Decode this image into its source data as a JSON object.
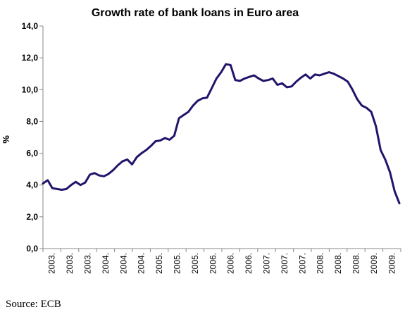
{
  "chart_data": {
    "type": "line",
    "title": "Growth rate of bank loans in Euro area",
    "xlabel": "",
    "ylabel": "%",
    "ylim": [
      0,
      14
    ],
    "yticks": [
      "0,0",
      "2,0",
      "4,0",
      "6,0",
      "8,0",
      "10,0",
      "12,0",
      "14,0"
    ],
    "x_tick_labels": [
      "2003.",
      "2003.",
      "2003.",
      "2004.",
      "2004.",
      "2004.",
      "2005.",
      "2005.",
      "2005.",
      "2006.",
      "2006.",
      "2006.",
      "2007.",
      "2007.",
      "2007.",
      "2008.",
      "2008.",
      "2008.",
      "2009.",
      "2009."
    ],
    "grid": false,
    "legend": "none",
    "line_color": "#23136b",
    "series": [
      {
        "values": [
          4.1,
          4.3,
          3.8,
          3.75,
          3.7,
          3.75,
          4.0,
          4.2,
          4.0,
          4.15,
          4.65,
          4.75,
          4.6,
          4.55,
          4.7,
          4.95,
          5.25,
          5.5,
          5.6,
          5.3,
          5.75,
          6.0,
          6.2,
          6.45,
          6.75,
          6.8,
          6.95,
          6.85,
          7.1,
          8.2,
          8.4,
          8.6,
          9.0,
          9.3,
          9.45,
          9.5,
          10.1,
          10.7,
          11.1,
          11.6,
          11.55,
          10.6,
          10.55,
          10.7,
          10.8,
          10.9,
          10.7,
          10.55,
          10.6,
          10.7,
          10.3,
          10.4,
          10.15,
          10.2,
          10.5,
          10.75,
          10.95,
          10.7,
          10.95,
          10.9,
          11.0,
          11.1,
          11.0,
          10.85,
          10.7,
          10.5,
          10.0,
          9.4,
          9.0,
          8.85,
          8.6,
          7.7,
          6.2,
          5.6,
          4.8,
          3.6,
          2.85
        ]
      }
    ]
  },
  "source_text": "Source: ECB"
}
